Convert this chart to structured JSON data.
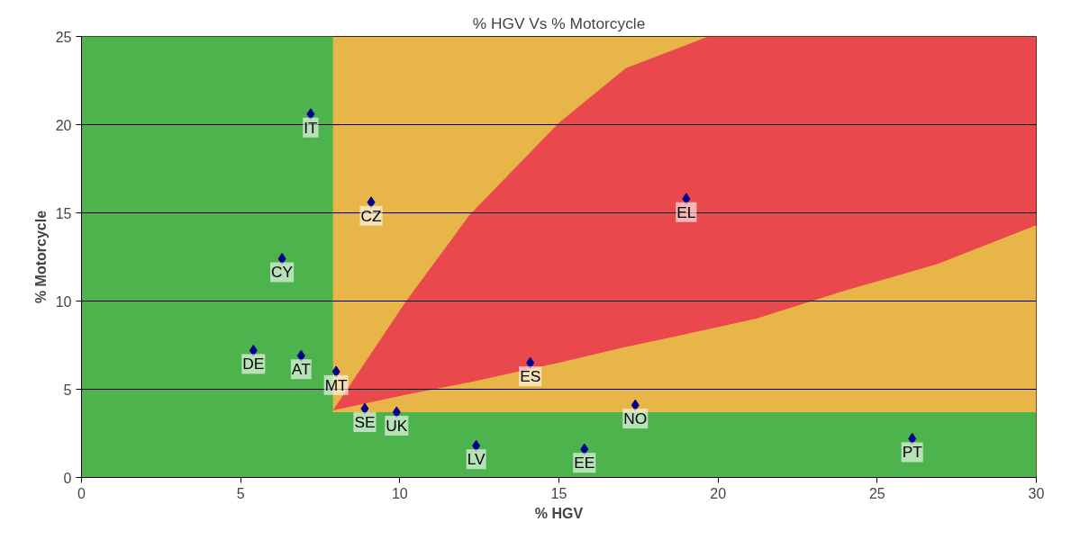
{
  "chart_data": {
    "type": "scatter",
    "title": "% HGV Vs % Motorcycle",
    "xlabel": "% HGV",
    "ylabel": "% Motorcycle",
    "xlim": [
      0,
      30
    ],
    "xticks": [
      0,
      5,
      10,
      15,
      20,
      25,
      30
    ],
    "ylim": [
      0,
      25
    ],
    "yticks": [
      0,
      5,
      10,
      15,
      20,
      25
    ],
    "grid": "y",
    "bands": [
      {
        "axis": "y",
        "from": 3.7,
        "to": 25,
        "color": "#e8b548"
      },
      {
        "axis": "x",
        "from": 0,
        "to": 7.9,
        "color": "#4db34d"
      },
      {
        "axis": "y",
        "from": 0,
        "to": 3.7,
        "color": "#4db34d"
      }
    ],
    "series": [
      {
        "type": "area",
        "color": "#e9494d",
        "x": [
          7.9,
          10.2,
          12.2,
          15,
          17.1,
          19.7,
          21.2,
          24,
          26.9,
          30
        ],
        "values": [
          3.8,
          10,
          14.9,
          20.1,
          23.2,
          25,
          25,
          25,
          25,
          25
        ]
      },
      {
        "type": "area",
        "color": "#e8b548",
        "x": [
          7.9,
          10.2,
          12.2,
          15,
          17.1,
          19.7,
          21.2,
          24,
          26.9,
          30
        ],
        "values": [
          3.8,
          4.7,
          5.4,
          6.5,
          7.4,
          8.4,
          9.0,
          10.6,
          12.1,
          14.3
        ]
      },
      {
        "color": "#00008b",
        "marker": "diamond",
        "x": [
          7.2,
          9.1,
          19.0,
          6.3,
          5.4,
          6.9,
          8.0,
          14.1,
          8.9,
          9.9,
          17.4,
          12.4,
          15.8,
          26.1
        ],
        "values": [
          20.6,
          15.6,
          15.8,
          12.4,
          7.2,
          6.9,
          6.0,
          6.5,
          3.9,
          3.7,
          4.1,
          1.8,
          1.6,
          2.2
        ],
        "value_labels": [
          "IT",
          "CZ",
          "EL",
          "CY",
          "DE",
          "AT",
          "MT",
          "ES",
          "SE",
          "UK",
          "NO",
          "LV",
          "EE",
          "PT"
        ]
      }
    ]
  }
}
